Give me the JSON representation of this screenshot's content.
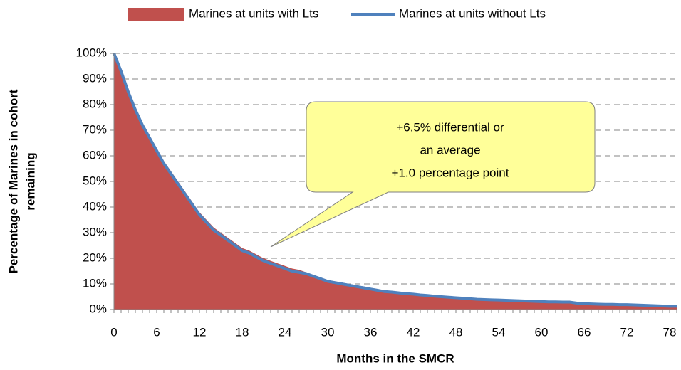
{
  "chart_data": {
    "type": "area_line",
    "x_label": "Months in the SMCR",
    "y_label_lines": [
      "Percentage of Marines in cohort",
      "remaining"
    ],
    "annotation_lines": [
      "+6.5% differential or",
      "an average",
      "+1.0 percentage point"
    ],
    "x": [
      0,
      1,
      2,
      3,
      4,
      5,
      6,
      7,
      8,
      9,
      10,
      11,
      12,
      13,
      14,
      15,
      16,
      17,
      18,
      19,
      20,
      21,
      22,
      23,
      24,
      25,
      26,
      27,
      28,
      29,
      30,
      31,
      32,
      33,
      34,
      35,
      36,
      37,
      38,
      39,
      40,
      41,
      42,
      43,
      44,
      45,
      46,
      47,
      48,
      49,
      50,
      51,
      52,
      53,
      54,
      55,
      56,
      57,
      58,
      59,
      60,
      61,
      62,
      63,
      64,
      65,
      66,
      67,
      68,
      69,
      70,
      71,
      72,
      73,
      74,
      75,
      76,
      77,
      78,
      79
    ],
    "xlim": [
      0,
      79
    ],
    "xticks": [
      0,
      6,
      12,
      18,
      24,
      30,
      36,
      42,
      48,
      54,
      60,
      66,
      72,
      78
    ],
    "ylim": [
      0,
      100
    ],
    "yticks": [
      {
        "value": 0,
        "label": "0%"
      },
      {
        "value": 10,
        "label": "10%"
      },
      {
        "value": 20,
        "label": "20%"
      },
      {
        "value": 30,
        "label": "30%"
      },
      {
        "value": 40,
        "label": "40%"
      },
      {
        "value": 50,
        "label": "50%"
      },
      {
        "value": 60,
        "label": "60%"
      },
      {
        "value": 70,
        "label": "70%"
      },
      {
        "value": 80,
        "label": "80%"
      },
      {
        "value": 90,
        "label": "90%"
      },
      {
        "value": 100,
        "label": "100%"
      }
    ],
    "grid": true,
    "series": [
      {
        "name": "Marines at units with Lts",
        "color": "#c0504d",
        "kind": "area",
        "values": [
          100,
          93.5,
          86,
          79,
          73,
          68,
          63,
          58,
          54,
          50,
          46,
          42,
          38,
          35,
          32,
          30,
          28,
          26,
          24,
          23,
          21.5,
          20,
          19,
          18,
          17,
          16,
          15.5,
          14.5,
          13.5,
          12.5,
          11.5,
          11,
          10.5,
          10,
          9.5,
          9,
          8.5,
          8,
          7.5,
          7.2,
          6.9,
          6.5,
          6.3,
          6,
          5.8,
          5.5,
          5.3,
          5.1,
          4.9,
          4.7,
          4.4,
          4.2,
          4.1,
          4,
          3.9,
          3.8,
          3.7,
          3.6,
          3.5,
          3.4,
          3.3,
          3.2,
          3.2,
          3.1,
          3.1,
          2.7,
          2.5,
          2.4,
          2.3,
          2.2,
          2.2,
          2.1,
          2.1,
          2,
          1.9,
          1.8,
          1.7,
          1.6,
          1.5,
          1.5
        ]
      },
      {
        "name": "Marines at units without Lts",
        "color": "#4f81bd",
        "kind": "line",
        "values": [
          100,
          93,
          85,
          78,
          72,
          67,
          62,
          57,
          53,
          49,
          45,
          41,
          37,
          34,
          31,
          29,
          27,
          25,
          23,
          22,
          20.5,
          19,
          18,
          17,
          16,
          15,
          14.5,
          14,
          13,
          12,
          11,
          10.5,
          10,
          9.5,
          9,
          8.5,
          8,
          7.5,
          7,
          6.8,
          6.5,
          6.2,
          6,
          5.7,
          5.5,
          5.2,
          5,
          4.8,
          4.6,
          4.4,
          4.2,
          4,
          3.9,
          3.8,
          3.7,
          3.6,
          3.5,
          3.4,
          3.3,
          3.2,
          3.1,
          3,
          3,
          2.9,
          2.9,
          2.5,
          2.3,
          2.2,
          2.1,
          2,
          2,
          1.9,
          1.9,
          1.8,
          1.7,
          1.6,
          1.5,
          1.4,
          1.3,
          1.3
        ]
      }
    ]
  }
}
